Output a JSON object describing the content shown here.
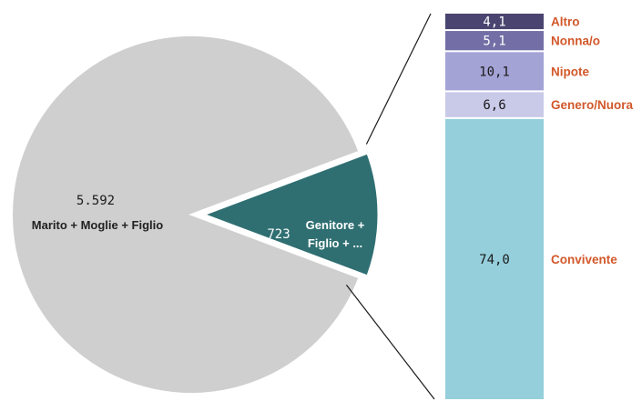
{
  "chart_data": {
    "type": "bar-of-pie",
    "pie": {
      "slices": [
        {
          "label": "Marito + Moglie + Figlio",
          "value": 5592,
          "value_label": "5.592",
          "color": "#cfcfcf"
        },
        {
          "label_line1": "Genitore +",
          "label_line2": "Figlio + ...",
          "value": 723,
          "value_label": "723",
          "color": "#2f6f72"
        }
      ]
    },
    "bar": {
      "segments": [
        {
          "label": "Altro",
          "value": 4.1,
          "value_label": "4,1",
          "color": "#4a4570",
          "text_color": "#ffffff"
        },
        {
          "label": "Nonna/o",
          "value": 5.1,
          "value_label": "5,1",
          "color": "#736fa6",
          "text_color": "#ffffff"
        },
        {
          "label": "Nipote",
          "value": 10.1,
          "value_label": "10,1",
          "color": "#a4a3d6",
          "text_color": "#1a1a1a"
        },
        {
          "label": "Genero/Nuora",
          "value": 6.6,
          "value_label": "6,6",
          "color": "#c9c9e8",
          "text_color": "#1a1a1a"
        },
        {
          "label": "Convivente",
          "value": 74.0,
          "value_label": "74,0",
          "color": "#95cfdc",
          "text_color": "#1a1a1a"
        }
      ],
      "legend_color": "#d2582a"
    }
  }
}
